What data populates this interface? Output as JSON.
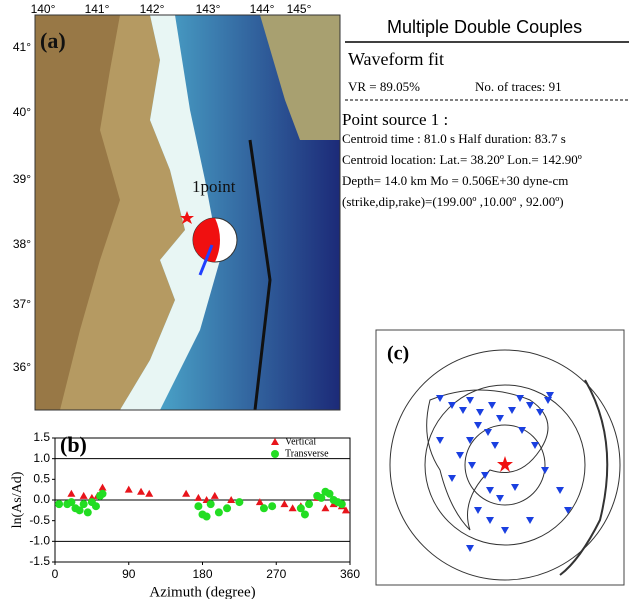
{
  "header": {
    "title": "Multiple Double Couples",
    "section": "Waveform fit",
    "vr": "VR = 89.05%",
    "traces": "No. of traces: 91",
    "source": "Point source 1 :",
    "lines": [
      "Centroid time : 81.0 s  Half duration: 83.7 s",
      "Centroid location: Lat.= 38.20º  Lon.= 142.90º",
      "Depth= 14.0 km       Mo = 0.506E+30 dyne-cm",
      "(strike,dip,rake)=(199.00º ,10.00º , 92.00º)"
    ]
  },
  "map": {
    "label": "(a)",
    "marker": "1point",
    "lon_labels": [
      "140°",
      "141°",
      "142°",
      "143°",
      "144°",
      "145°"
    ],
    "lat_labels": [
      "41°",
      "40°",
      "39°",
      "38°",
      "37°",
      "36°"
    ]
  },
  "station_map": {
    "label": "(c)"
  },
  "chart_data": {
    "type": "scatter",
    "label": "(b)",
    "xlabel": "Azimuth (degree)",
    "ylabel": "ln(As/Ad)",
    "xlim": [
      0,
      360
    ],
    "xticks": [
      0,
      90,
      180,
      270,
      360
    ],
    "ylim": [
      -1.5,
      1.5
    ],
    "yticks": [
      1.5,
      {
        "value": 1,
        "label": "1.0"
      },
      0.5,
      {
        "value": 0,
        "label": "0.0"
      },
      -0.5,
      {
        "value": -1,
        "label": "-1.0"
      },
      -1.5
    ],
    "legend": "top-right",
    "series": [
      {
        "name": "Vertical",
        "color": "#e8141b",
        "marker": "triangle",
        "x": [
          20,
          35,
          45,
          52,
          58,
          90,
          105,
          115,
          160,
          175,
          185,
          195,
          215,
          250,
          280,
          290,
          300,
          320,
          330,
          340,
          350,
          355
        ],
        "values": [
          0.15,
          0.1,
          0.05,
          0.1,
          0.3,
          0.25,
          0.2,
          0.15,
          0.15,
          0.05,
          0,
          0.1,
          0,
          -0.05,
          -0.1,
          -0.2,
          -0.15,
          0.05,
          -0.2,
          -0.1,
          -0.15,
          -0.25
        ]
      },
      {
        "name": "Transverse",
        "color": "#22dd22",
        "marker": "circle",
        "x": [
          5,
          15,
          20,
          25,
          30,
          35,
          40,
          45,
          50,
          55,
          58,
          175,
          180,
          185,
          190,
          200,
          210,
          225,
          255,
          265,
          300,
          305,
          310,
          320,
          325,
          330,
          335,
          340,
          345,
          350
        ],
        "values": [
          -0.1,
          -0.1,
          -0.05,
          -0.2,
          -0.25,
          -0.1,
          -0.3,
          -0.05,
          -0.15,
          0.1,
          0.15,
          -0.15,
          -0.35,
          -0.4,
          -0.1,
          -0.3,
          -0.2,
          -0.05,
          -0.2,
          -0.15,
          -0.2,
          -0.35,
          -0.1,
          0.1,
          0.05,
          0.2,
          0.15,
          0,
          -0.05,
          -0.1
        ]
      }
    ]
  }
}
